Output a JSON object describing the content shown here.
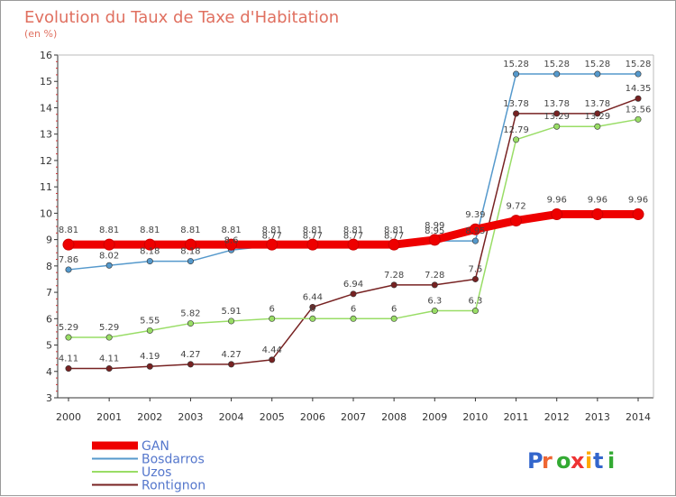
{
  "chart_data": {
    "type": "line",
    "title": "Evolution du Taux de Taxe d'Habitation",
    "subtitle": "(en %)",
    "x": [
      "2000",
      "2001",
      "2002",
      "2003",
      "2004",
      "2005",
      "2006",
      "2007",
      "2008",
      "2009",
      "2010",
      "2011",
      "2012",
      "2013",
      "2014"
    ],
    "ylim": [
      3,
      16
    ],
    "yticks": [
      "3",
      "4",
      "5",
      "6",
      "7",
      "8",
      "9",
      "10",
      "11",
      "12",
      "13",
      "14",
      "15",
      "16"
    ],
    "grid": false,
    "legend_position": "bottom-left",
    "series": [
      {
        "name": "GAN",
        "color": "#ee0000",
        "values": [
          8.81,
          8.81,
          8.81,
          8.81,
          8.81,
          8.81,
          8.81,
          8.81,
          8.81,
          8.99,
          9.39,
          9.72,
          9.96,
          9.96,
          9.96
        ],
        "labels": [
          "8.81",
          "8.81",
          "8.81",
          "8.81",
          "8.81",
          "8.81",
          "8.81",
          "8.81",
          "8.81",
          "8.99",
          "9.39",
          "9.72",
          "9.96",
          "9.96",
          "9.96"
        ]
      },
      {
        "name": "Bosdarros",
        "color": "#5599cc",
        "values": [
          7.86,
          8.02,
          8.18,
          8.18,
          8.6,
          8.77,
          8.77,
          8.77,
          8.77,
          8.95,
          8.95,
          15.28,
          15.28,
          15.28,
          15.28
        ],
        "labels": [
          "7.86",
          "8.02",
          "8.18",
          "8.18",
          "8.6",
          "8.77",
          "8.77",
          "8.77",
          "8.77",
          "8.95",
          "8.95",
          "15.28",
          "15.28",
          "15.28",
          "15.28"
        ]
      },
      {
        "name": "Uzos",
        "color": "#99dd66",
        "values": [
          5.29,
          5.29,
          5.55,
          5.82,
          5.91,
          6,
          6,
          6,
          6,
          6.3,
          6.3,
          12.79,
          13.29,
          13.29,
          13.56
        ],
        "labels": [
          "5.29",
          "5.29",
          "5.55",
          "5.82",
          "5.91",
          "6",
          "6",
          "6",
          "6",
          "6.3",
          "6.3",
          "12.79",
          "13.29",
          "13.29",
          "13.56"
        ]
      },
      {
        "name": "Rontignon",
        "color": "#772222",
        "values": [
          4.11,
          4.11,
          4.19,
          4.27,
          4.27,
          4.44,
          6.44,
          6.94,
          7.28,
          7.28,
          7.5,
          13.78,
          13.78,
          13.78,
          14.35
        ],
        "labels": [
          "4.11",
          "4.11",
          "4.19",
          "4.27",
          "4.27",
          "4.44",
          "6.44",
          "6.94",
          "7.28",
          "7.28",
          "7.5",
          "13.78",
          "13.78",
          "13.78",
          "14.35"
        ]
      }
    ]
  },
  "logo": {
    "text": "Proxiti"
  }
}
